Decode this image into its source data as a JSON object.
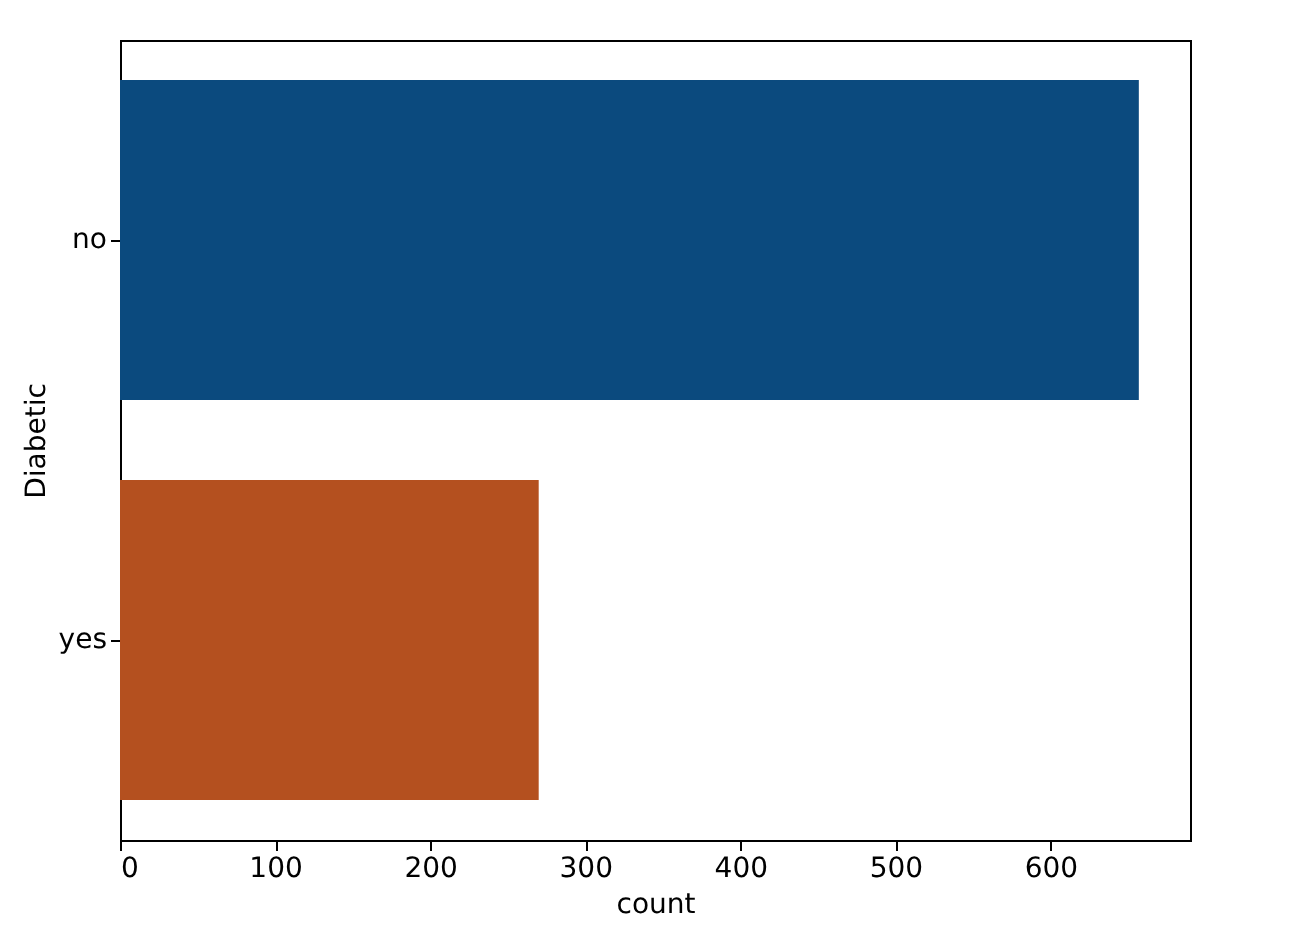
{
  "chart_data": {
    "type": "bar",
    "orientation": "horizontal",
    "xlabel": "count",
    "ylabel": "Diabetic",
    "categories": [
      "no",
      "yes"
    ],
    "values": [
      657,
      270
    ],
    "colors": [
      "#0b4a7e",
      "#b4501f"
    ],
    "xlim": [
      0,
      690
    ],
    "xticks": [
      0,
      100,
      200,
      300,
      400,
      500,
      600
    ],
    "grid": false
  }
}
